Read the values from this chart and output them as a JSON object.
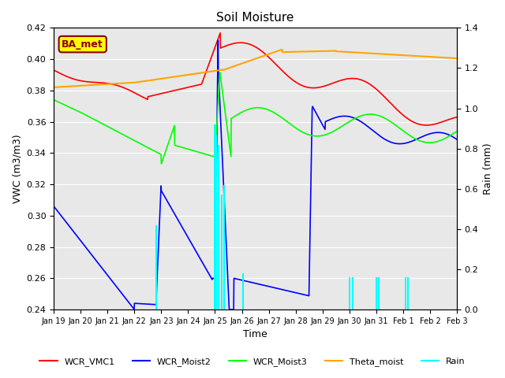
{
  "title": "Soil Moisture",
  "ylabel_left": "VWC (m3/m3)",
  "ylabel_right": "Rain (mm)",
  "xlabel": "Time",
  "ylim_left": [
    0.24,
    0.42
  ],
  "ylim_right": [
    0.0,
    1.4
  ],
  "background_color": "#ffffff",
  "plot_bg_color": "#e8e8e8",
  "legend_labels": [
    "WCR_VMC1",
    "WCR_Moist2",
    "WCR_Moist3",
    "Theta_moist",
    "Rain"
  ],
  "legend_colors": [
    "red",
    "blue",
    "lime",
    "orange",
    "cyan"
  ],
  "station_label": "BA_met",
  "tick_labels": [
    "Jan 19",
    "Jan 20",
    "Jan 21",
    "Jan 22",
    "Jan 23",
    "Jan 24",
    "Jan 25",
    "Jan 26",
    "Jan 27",
    "Jan 28",
    "Jan 29",
    "Jan 30",
    "Jan 31",
    "Feb 1",
    "Feb 2",
    "Feb 3"
  ],
  "tick_positions": [
    0,
    1,
    2,
    3,
    4,
    5,
    6,
    7,
    8,
    9,
    10,
    11,
    12,
    13,
    14,
    15
  ]
}
